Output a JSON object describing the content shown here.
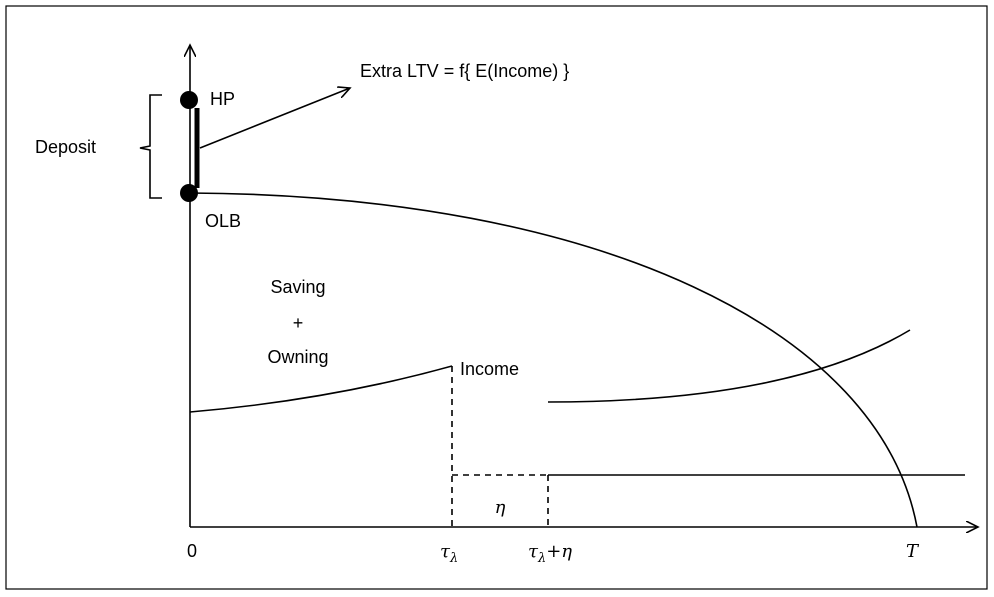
{
  "labels": {
    "extra_ltv": "Extra LTV = f{ E(Income) }",
    "hp": "HP",
    "olb": "OLB",
    "deposit": "Deposit",
    "saving": "Saving",
    "plus": "+",
    "owning": "Owning",
    "income": "Income",
    "eta": "η",
    "zero": "0",
    "tau_lambda": {
      "base": "τ",
      "sub": "λ"
    },
    "tau_lambda_eta": {
      "base": "τ",
      "sub": "λ",
      "rest": "+η"
    },
    "T": "T"
  }
}
